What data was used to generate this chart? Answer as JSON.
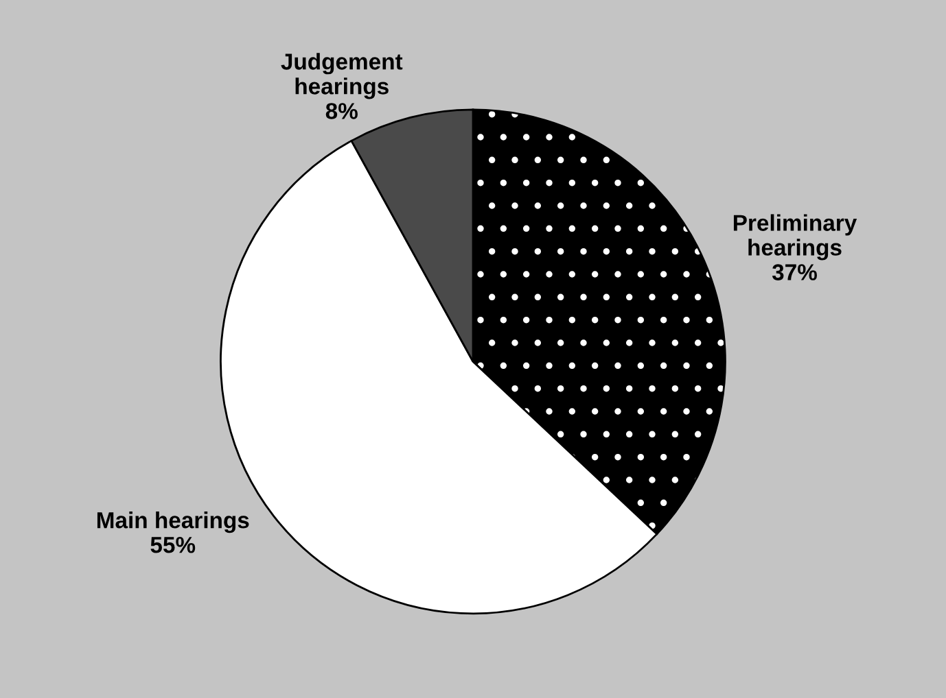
{
  "chart_data": {
    "type": "pie",
    "categories": [
      "Preliminary\nhearings",
      "Main hearings",
      "Judgement\nhearings"
    ],
    "values": [
      37,
      55,
      8
    ],
    "value_labels": [
      "37%",
      "55%",
      "8%"
    ],
    "colors": [
      "#000000",
      "#ffffff",
      "#4a4a4a"
    ],
    "legend": false
  }
}
